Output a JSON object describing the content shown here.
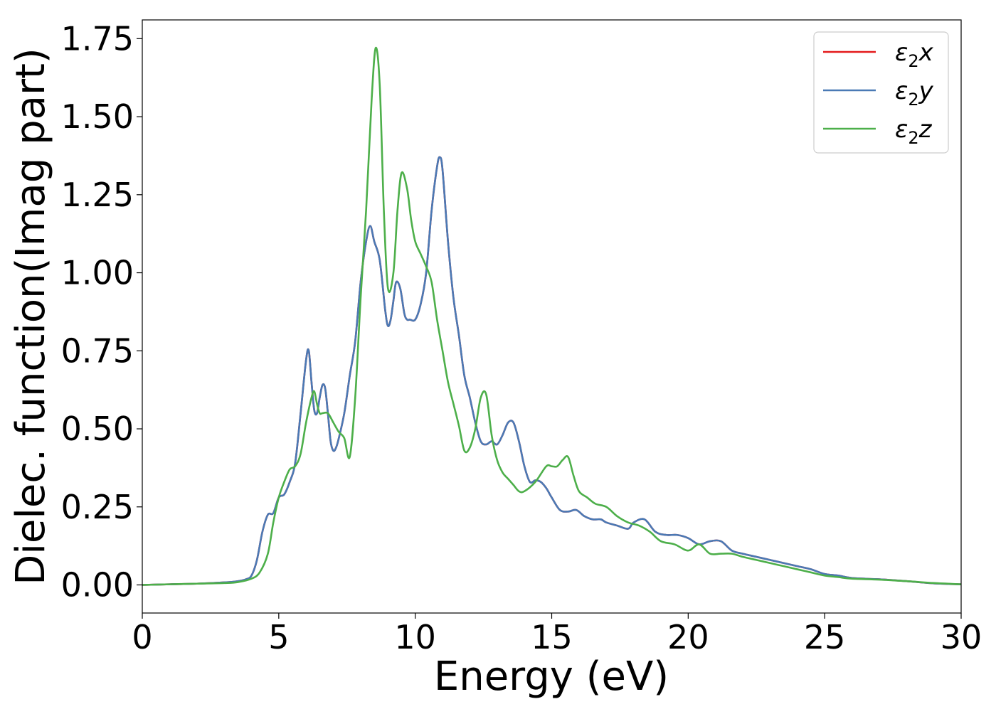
{
  "chart_data": {
    "type": "line",
    "title": "",
    "xlabel": "Energy (eV)",
    "ylabel": "Dielec. function(Imag part)",
    "xlim": [
      0,
      30
    ],
    "ylim": [
      -0.09,
      1.81
    ],
    "xticks": [
      0,
      5,
      10,
      15,
      20,
      25,
      30
    ],
    "xtick_labels": [
      "0",
      "5",
      "10",
      "15",
      "20",
      "25",
      "30"
    ],
    "yticks": [
      0,
      0.25,
      0.5,
      0.75,
      1.0,
      1.25,
      1.5,
      1.75
    ],
    "ytick_labels": [
      "0.00",
      "0.25",
      "0.50",
      "0.75",
      "1.00",
      "1.25",
      "1.50",
      "1.75"
    ],
    "grid": false,
    "legend": {
      "position": "top-right",
      "entries": [
        {
          "prefix": "ε",
          "sub": "2",
          "suffix": "x"
        },
        {
          "prefix": "ε",
          "sub": "2",
          "suffix": "y"
        },
        {
          "prefix": "ε",
          "sub": "2",
          "suffix": "z"
        }
      ]
    },
    "series": [
      {
        "name": "ε2x",
        "color": "#e41a1c",
        "x": [
          0,
          1,
          2,
          3,
          3.5,
          3.8,
          4.0,
          4.2,
          4.4,
          4.6,
          4.8,
          5.0,
          5.2,
          5.4,
          5.6,
          5.8,
          6.0,
          6.1,
          6.2,
          6.3,
          6.4,
          6.5,
          6.6,
          6.7,
          6.8,
          6.9,
          7.0,
          7.1,
          7.2,
          7.4,
          7.6,
          7.8,
          8.0,
          8.2,
          8.35,
          8.5,
          8.7,
          8.9,
          9.0,
          9.1,
          9.2,
          9.3,
          9.45,
          9.6,
          9.7,
          9.8,
          10.0,
          10.2,
          10.4,
          10.6,
          10.8,
          10.9,
          11.0,
          11.2,
          11.4,
          11.6,
          11.8,
          12.0,
          12.2,
          12.4,
          12.6,
          12.8,
          13.0,
          13.2,
          13.4,
          13.6,
          13.8,
          14.0,
          14.2,
          14.4,
          14.6,
          14.8,
          15.0,
          15.3,
          15.6,
          15.9,
          16.2,
          16.5,
          16.8,
          17.0,
          17.4,
          17.8,
          18.0,
          18.4,
          18.8,
          19.2,
          19.6,
          20.0,
          20.4,
          20.8,
          21.2,
          21.6,
          22.0,
          22.5,
          23.0,
          23.5,
          24.0,
          24.5,
          25.0,
          25.5,
          26.0,
          27.0,
          28.0,
          29.0,
          30.0
        ],
        "values": [
          0.0,
          0.002,
          0.004,
          0.008,
          0.012,
          0.018,
          0.03,
          0.08,
          0.17,
          0.225,
          0.23,
          0.28,
          0.29,
          0.33,
          0.39,
          0.55,
          0.72,
          0.75,
          0.65,
          0.56,
          0.55,
          0.6,
          0.64,
          0.63,
          0.55,
          0.46,
          0.43,
          0.44,
          0.47,
          0.55,
          0.67,
          0.78,
          0.97,
          1.1,
          1.15,
          1.1,
          1.04,
          0.88,
          0.83,
          0.85,
          0.91,
          0.97,
          0.95,
          0.87,
          0.85,
          0.85,
          0.85,
          0.9,
          1.0,
          1.2,
          1.34,
          1.37,
          1.33,
          1.1,
          0.92,
          0.8,
          0.67,
          0.6,
          0.52,
          0.46,
          0.45,
          0.46,
          0.45,
          0.48,
          0.52,
          0.52,
          0.46,
          0.38,
          0.33,
          0.335,
          0.33,
          0.31,
          0.28,
          0.24,
          0.235,
          0.24,
          0.22,
          0.21,
          0.21,
          0.2,
          0.19,
          0.18,
          0.2,
          0.21,
          0.17,
          0.16,
          0.16,
          0.15,
          0.13,
          0.14,
          0.14,
          0.11,
          0.1,
          0.09,
          0.08,
          0.07,
          0.06,
          0.05,
          0.035,
          0.03,
          0.022,
          0.018,
          0.012,
          0.005,
          0.002
        ]
      },
      {
        "name": "ε2y",
        "color": "#4a7ab5",
        "x": [
          0,
          1,
          2,
          3,
          3.5,
          3.8,
          4.0,
          4.2,
          4.4,
          4.6,
          4.8,
          5.0,
          5.2,
          5.4,
          5.6,
          5.8,
          6.0,
          6.1,
          6.2,
          6.3,
          6.4,
          6.5,
          6.6,
          6.7,
          6.8,
          6.9,
          7.0,
          7.1,
          7.2,
          7.4,
          7.6,
          7.8,
          8.0,
          8.2,
          8.35,
          8.5,
          8.7,
          8.9,
          9.0,
          9.1,
          9.2,
          9.3,
          9.45,
          9.6,
          9.7,
          9.8,
          10.0,
          10.2,
          10.4,
          10.6,
          10.8,
          10.9,
          11.0,
          11.2,
          11.4,
          11.6,
          11.8,
          12.0,
          12.2,
          12.4,
          12.6,
          12.8,
          13.0,
          13.2,
          13.4,
          13.6,
          13.8,
          14.0,
          14.2,
          14.4,
          14.6,
          14.8,
          15.0,
          15.3,
          15.6,
          15.9,
          16.2,
          16.5,
          16.8,
          17.0,
          17.4,
          17.8,
          18.0,
          18.4,
          18.8,
          19.2,
          19.6,
          20.0,
          20.4,
          20.8,
          21.2,
          21.6,
          22.0,
          22.5,
          23.0,
          23.5,
          24.0,
          24.5,
          25.0,
          25.5,
          26.0,
          27.0,
          28.0,
          29.0,
          30.0
        ],
        "values": [
          0.0,
          0.002,
          0.004,
          0.008,
          0.012,
          0.018,
          0.03,
          0.08,
          0.17,
          0.225,
          0.23,
          0.28,
          0.29,
          0.33,
          0.39,
          0.55,
          0.72,
          0.75,
          0.65,
          0.56,
          0.55,
          0.6,
          0.64,
          0.63,
          0.55,
          0.46,
          0.43,
          0.44,
          0.47,
          0.55,
          0.67,
          0.78,
          0.97,
          1.1,
          1.15,
          1.1,
          1.04,
          0.88,
          0.83,
          0.85,
          0.91,
          0.97,
          0.95,
          0.87,
          0.85,
          0.85,
          0.85,
          0.9,
          1.0,
          1.2,
          1.34,
          1.37,
          1.33,
          1.1,
          0.92,
          0.8,
          0.67,
          0.6,
          0.52,
          0.46,
          0.45,
          0.46,
          0.45,
          0.48,
          0.52,
          0.52,
          0.46,
          0.38,
          0.33,
          0.335,
          0.33,
          0.31,
          0.28,
          0.24,
          0.235,
          0.24,
          0.22,
          0.21,
          0.21,
          0.2,
          0.19,
          0.18,
          0.2,
          0.21,
          0.17,
          0.16,
          0.16,
          0.15,
          0.13,
          0.14,
          0.14,
          0.11,
          0.1,
          0.09,
          0.08,
          0.07,
          0.06,
          0.05,
          0.035,
          0.03,
          0.022,
          0.018,
          0.012,
          0.005,
          0.002
        ]
      },
      {
        "name": "ε2z",
        "color": "#4daf4a",
        "x": [
          0,
          1,
          2,
          3,
          3.5,
          4.0,
          4.3,
          4.6,
          4.8,
          5.0,
          5.2,
          5.4,
          5.6,
          5.8,
          6.0,
          6.2,
          6.3,
          6.4,
          6.5,
          6.6,
          6.8,
          7.0,
          7.2,
          7.4,
          7.6,
          7.8,
          8.0,
          8.2,
          8.4,
          8.55,
          8.7,
          8.85,
          9.0,
          9.2,
          9.35,
          9.5,
          9.7,
          9.85,
          10.0,
          10.2,
          10.4,
          10.6,
          10.8,
          11.0,
          11.2,
          11.4,
          11.6,
          11.8,
          12.0,
          12.2,
          12.4,
          12.6,
          12.8,
          13.0,
          13.2,
          13.4,
          13.6,
          13.8,
          14.0,
          14.4,
          14.8,
          15.0,
          15.2,
          15.4,
          15.6,
          15.8,
          16.0,
          16.3,
          16.6,
          17.0,
          17.4,
          17.8,
          18.2,
          18.6,
          19.0,
          19.5,
          20.0,
          20.4,
          20.8,
          21.2,
          21.6,
          22.0,
          22.5,
          23.0,
          23.5,
          24.0,
          24.5,
          25.0,
          25.5,
          26.0,
          27.0,
          28.0,
          29.0,
          30.0
        ],
        "values": [
          0.0,
          0.002,
          0.004,
          0.006,
          0.009,
          0.02,
          0.04,
          0.1,
          0.2,
          0.28,
          0.33,
          0.37,
          0.38,
          0.42,
          0.52,
          0.6,
          0.62,
          0.58,
          0.55,
          0.55,
          0.55,
          0.52,
          0.49,
          0.47,
          0.41,
          0.6,
          0.92,
          1.2,
          1.55,
          1.72,
          1.6,
          1.2,
          0.95,
          1.0,
          1.2,
          1.32,
          1.27,
          1.17,
          1.1,
          1.06,
          1.02,
          0.97,
          0.85,
          0.75,
          0.65,
          0.58,
          0.51,
          0.43,
          0.44,
          0.5,
          0.6,
          0.61,
          0.48,
          0.4,
          0.36,
          0.34,
          0.32,
          0.3,
          0.3,
          0.33,
          0.38,
          0.38,
          0.38,
          0.4,
          0.41,
          0.35,
          0.3,
          0.28,
          0.26,
          0.25,
          0.22,
          0.2,
          0.19,
          0.17,
          0.14,
          0.13,
          0.11,
          0.13,
          0.1,
          0.1,
          0.1,
          0.09,
          0.08,
          0.07,
          0.06,
          0.05,
          0.04,
          0.03,
          0.025,
          0.02,
          0.017,
          0.012,
          0.006,
          0.002
        ]
      }
    ]
  }
}
